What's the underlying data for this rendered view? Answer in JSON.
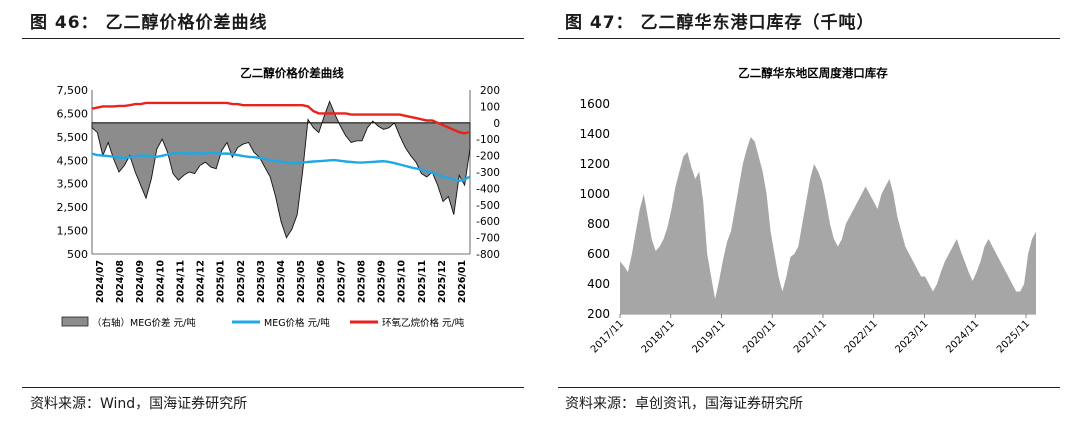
{
  "left_panel": {
    "figure_title": "图 46：  乙二醇价格价差曲线",
    "source": "资料来源：Wind，国海证券研究所"
  },
  "right_panel": {
    "figure_title": "图 47：  乙二醇华东港口库存（千吨）",
    "source": "资料来源：卓创资讯，国海证券研究所"
  },
  "chart_data": [
    {
      "type": "line",
      "title": "乙二醇价格价差曲线",
      "x_tick_labels": [
        "2024/07",
        "2024/08",
        "2024/09",
        "2024/10",
        "2024/11",
        "2024/12",
        "2025/01",
        "2025/02",
        "2025/03",
        "2025/04",
        "2025/05",
        "2025/06",
        "2025/07",
        "2025/08",
        "2025/09",
        "2025/10",
        "2025/11",
        "2025/12",
        "2026/01"
      ],
      "ylim_left": [
        500,
        7500
      ],
      "yticks_left": [
        "7,500",
        "6,500",
        "5,500",
        "4,500",
        "3,500",
        "2,500",
        "1,500",
        "500"
      ],
      "ylim_right": [
        -800,
        200
      ],
      "yticks_right": [
        "200",
        "100",
        "0",
        "-100",
        "-200",
        "-300",
        "-400",
        "-500",
        "-600",
        "-700",
        "-800"
      ],
      "series": [
        {
          "name": "（右轴）MEG价差  元/吨",
          "type": "area",
          "axis": "right",
          "color": "#8c8c8c",
          "values": [
            -30,
            -60,
            -200,
            -120,
            -220,
            -300,
            -260,
            -200,
            -300,
            -380,
            -460,
            -340,
            -160,
            -100,
            -180,
            -310,
            -350,
            -320,
            -300,
            -310,
            -260,
            -240,
            -270,
            -280,
            -170,
            -120,
            -210,
            -150,
            -130,
            -120,
            -180,
            -210,
            -270,
            -330,
            -450,
            -600,
            -700,
            -650,
            -560,
            -300,
            20,
            -30,
            -60,
            40,
            130,
            50,
            -20,
            -80,
            -120,
            -110,
            -110,
            -30,
            10,
            -20,
            -40,
            -30,
            0,
            -80,
            -150,
            -200,
            -240,
            -310,
            -330,
            -300,
            -380,
            -480,
            -450,
            -560,
            -320,
            -380,
            -160
          ]
        },
        {
          "name": "MEG价格  元/吨",
          "type": "line",
          "axis": "left",
          "color": "#1fa8e6",
          "values": [
            4780,
            4720,
            4700,
            4680,
            4650,
            4620,
            4600,
            4630,
            4680,
            4700,
            4700,
            4680,
            4650,
            4690,
            4750,
            4800,
            4820,
            4800,
            4790,
            4810,
            4790,
            4800,
            4820,
            4810,
            4780,
            4790,
            4760,
            4720,
            4680,
            4650,
            4630,
            4600,
            4560,
            4500,
            4470,
            4440,
            4400,
            4370,
            4380,
            4400,
            4430,
            4450,
            4460,
            4480,
            4500,
            4510,
            4480,
            4450,
            4430,
            4410,
            4400,
            4420,
            4430,
            4450,
            4460,
            4430,
            4380,
            4320,
            4260,
            4200,
            4150,
            4100,
            4040,
            3960,
            3880,
            3800,
            3740,
            3680,
            3620,
            3680,
            3800
          ]
        },
        {
          "name": "环氧乙烷价格  元/吨",
          "type": "line",
          "axis": "left",
          "color": "#e8231d",
          "values": [
            6700,
            6750,
            6800,
            6800,
            6800,
            6820,
            6820,
            6850,
            6900,
            6900,
            6950,
            6950,
            6950,
            6950,
            6950,
            6950,
            6950,
            6950,
            6950,
            6950,
            6950,
            6950,
            6950,
            6950,
            6950,
            6950,
            6900,
            6900,
            6850,
            6850,
            6850,
            6850,
            6850,
            6850,
            6850,
            6850,
            6850,
            6850,
            6850,
            6850,
            6800,
            6600,
            6500,
            6500,
            6500,
            6500,
            6500,
            6500,
            6450,
            6450,
            6450,
            6450,
            6450,
            6450,
            6450,
            6450,
            6450,
            6450,
            6400,
            6350,
            6300,
            6250,
            6200,
            6200,
            6100,
            6000,
            5900,
            5800,
            5700,
            5650,
            5700
          ]
        }
      ],
      "legend_position": "bottom"
    },
    {
      "type": "area",
      "title": "乙二醇华东地区周度港口库存",
      "x_tick_labels": [
        "2017/11",
        "2018/11",
        "2019/11",
        "2020/11",
        "2021/11",
        "2022/11",
        "2023/11",
        "2024/11",
        "2025/11"
      ],
      "ylim": [
        200,
        1600
      ],
      "yticks": [
        "1600",
        "1400",
        "1200",
        "1000",
        "800",
        "600",
        "400",
        "200"
      ],
      "series": [
        {
          "name": "乙二醇华东地区周度港口库存",
          "color": "#a6a6a6",
          "values": [
            550,
            520,
            480,
            600,
            750,
            900,
            1000,
            850,
            700,
            620,
            650,
            700,
            780,
            900,
            1050,
            1150,
            1250,
            1280,
            1180,
            1100,
            1150,
            950,
            600,
            450,
            300,
            420,
            560,
            680,
            750,
            900,
            1050,
            1200,
            1300,
            1380,
            1350,
            1250,
            1150,
            1000,
            750,
            600,
            450,
            350,
            450,
            580,
            600,
            650,
            800,
            950,
            1100,
            1200,
            1150,
            1080,
            950,
            800,
            700,
            650,
            700,
            800,
            850,
            900,
            950,
            1000,
            1050,
            1000,
            950,
            900,
            1000,
            1050,
            1100,
            1000,
            850,
            750,
            650,
            600,
            550,
            500,
            450,
            450,
            400,
            350,
            400,
            480,
            550,
            600,
            650,
            700,
            620,
            550,
            480,
            420,
            480,
            550,
            650,
            700,
            650,
            600,
            550,
            500,
            450,
            400,
            350,
            350,
            400,
            600,
            700,
            750
          ]
        }
      ],
      "legend_position": "none"
    }
  ]
}
